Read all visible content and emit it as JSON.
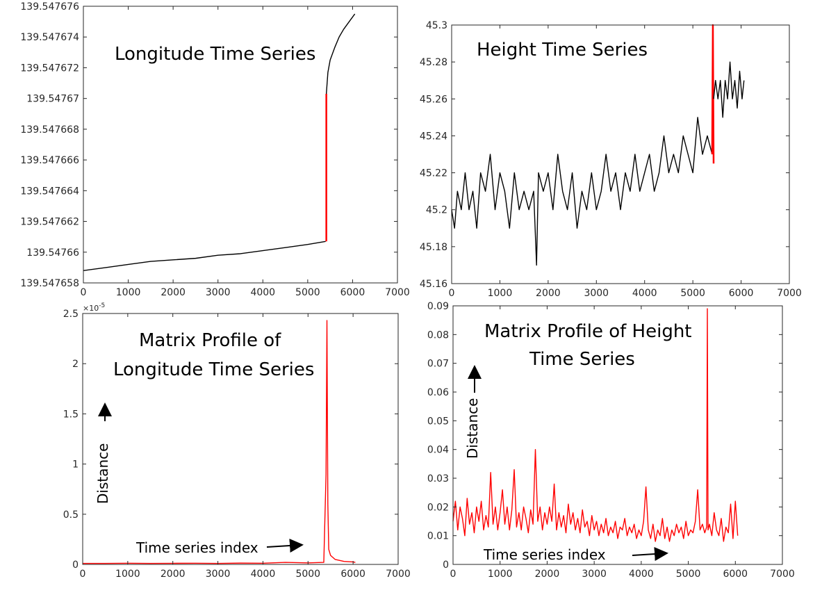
{
  "colors": {
    "series_black": "#000000",
    "series_red": "#ff0000",
    "axis": "#262626",
    "arrow": "#000000"
  },
  "chart_data": [
    {
      "id": "longitude",
      "type": "line",
      "title": "Longitude Time Series",
      "xlabel": "",
      "ylabel": "",
      "xlim": [
        0,
        7000
      ],
      "ylim": [
        139.547658,
        139.547676
      ],
      "xticks": [
        0,
        1000,
        2000,
        3000,
        4000,
        5000,
        6000,
        7000
      ],
      "xtick_labels": [
        "0",
        "1000",
        "2000",
        "3000",
        "4000",
        "5000",
        "6000",
        "7000"
      ],
      "yticks": [
        139.547658,
        139.54766,
        139.547662,
        139.547664,
        139.547666,
        139.547668,
        139.54767,
        139.547672,
        139.547674,
        139.547676
      ],
      "ytick_labels": [
        "139.547658",
        "139.54766",
        "139.547662",
        "139.547664",
        "139.547666",
        "139.547668",
        "139.54767",
        "139.547672",
        "139.547674",
        "139.547676"
      ],
      "grid": false,
      "series": [
        {
          "color": "#000000",
          "x": [
            0,
            500,
            1000,
            1500,
            2000,
            2500,
            3000,
            3500,
            4000,
            4500,
            5000,
            5400
          ],
          "y": [
            139.5476588,
            139.547659,
            139.5476592,
            139.5476594,
            139.5476595,
            139.5476596,
            139.5476598,
            139.5476599,
            139.5476601,
            139.5476603,
            139.5476605,
            139.5476607
          ]
        },
        {
          "color": "#ff0000",
          "x": [
            5415,
            5415
          ],
          "y": [
            139.5476607,
            139.5476703
          ]
        },
        {
          "color": "#000000",
          "x": [
            5415,
            5450,
            5500,
            5600,
            5700,
            5800,
            5900,
            6050
          ],
          "y": [
            139.5476703,
            139.5476717,
            139.5476725,
            139.5476733,
            139.547674,
            139.5476745,
            139.5476749,
            139.5476755
          ]
        }
      ]
    },
    {
      "id": "height",
      "type": "line",
      "title": "Height Time Series",
      "xlabel": "",
      "ylabel": "",
      "xlim": [
        0,
        7000
      ],
      "ylim": [
        45.16,
        45.3
      ],
      "xticks": [
        0,
        1000,
        2000,
        3000,
        4000,
        5000,
        6000,
        7000
      ],
      "xtick_labels": [
        "0",
        "1000",
        "2000",
        "3000",
        "4000",
        "5000",
        "6000",
        "7000"
      ],
      "yticks": [
        45.16,
        45.18,
        45.2,
        45.22,
        45.24,
        45.26,
        45.28,
        45.3
      ],
      "ytick_labels": [
        "45.16",
        "45.18",
        "45.2",
        "45.22",
        "45.24",
        "45.26",
        "45.28",
        "45.3"
      ],
      "grid": false,
      "series": [
        {
          "color": "#000000",
          "x": [
            0,
            60,
            120,
            200,
            280,
            360,
            440,
            520,
            600,
            700,
            800,
            900,
            1000,
            1100,
            1200,
            1300,
            1400,
            1500,
            1600,
            1700,
            1760,
            1800,
            1900,
            2000,
            2100,
            2200,
            2300,
            2400,
            2500,
            2600,
            2700,
            2800,
            2900,
            3000,
            3100,
            3200,
            3300,
            3400,
            3500,
            3600,
            3700,
            3800,
            3900,
            4000,
            4100,
            4200,
            4300,
            4400,
            4500,
            4600,
            4700,
            4800,
            4900,
            5000,
            5100,
            5200,
            5300,
            5400
          ],
          "y": [
            45.2,
            45.19,
            45.21,
            45.2,
            45.22,
            45.2,
            45.21,
            45.19,
            45.22,
            45.21,
            45.23,
            45.2,
            45.22,
            45.21,
            45.19,
            45.22,
            45.2,
            45.21,
            45.2,
            45.21,
            45.17,
            45.22,
            45.21,
            45.22,
            45.2,
            45.23,
            45.21,
            45.2,
            45.22,
            45.19,
            45.21,
            45.2,
            45.22,
            45.2,
            45.21,
            45.23,
            45.21,
            45.22,
            45.2,
            45.22,
            45.21,
            45.23,
            45.21,
            45.22,
            45.23,
            45.21,
            45.22,
            45.24,
            45.22,
            45.23,
            45.22,
            45.24,
            45.23,
            45.22,
            45.25,
            45.23,
            45.24,
            45.23
          ]
        },
        {
          "color": "#ff0000",
          "x": [
            5400,
            5415,
            5430
          ],
          "y": [
            45.23,
            45.3,
            45.225
          ]
        },
        {
          "color": "#000000",
          "x": [
            5430,
            5470,
            5520,
            5570,
            5620,
            5670,
            5720,
            5770,
            5820,
            5870,
            5920,
            5970,
            6020,
            6060
          ],
          "y": [
            45.26,
            45.27,
            45.26,
            45.27,
            45.25,
            45.27,
            45.26,
            45.28,
            45.26,
            45.27,
            45.255,
            45.275,
            45.26,
            45.27
          ]
        }
      ]
    },
    {
      "id": "mp-longitude",
      "type": "line",
      "title_lines": [
        "Matrix Profile of",
        "Longitude Time Series"
      ],
      "xlabel": "",
      "ylabel": "",
      "xlim": [
        0,
        7000
      ],
      "ylim": [
        0,
        2.5
      ],
      "y_exponent": "×10",
      "y_exponent_power": "-5",
      "xticks": [
        0,
        1000,
        2000,
        3000,
        4000,
        5000,
        6000,
        7000
      ],
      "xtick_labels": [
        "0",
        "1000",
        "2000",
        "3000",
        "4000",
        "5000",
        "6000",
        "7000"
      ],
      "yticks": [
        0,
        0.5,
        1,
        1.5,
        2,
        2.5
      ],
      "ytick_labels": [
        "0",
        "0.5",
        "1",
        "1.5",
        "2",
        "2.5"
      ],
      "grid": false,
      "annotations": {
        "distance": "Distance",
        "index": "Time series index"
      },
      "series": [
        {
          "color": "#ff0000",
          "x": [
            0,
            500,
            1000,
            1500,
            2000,
            2500,
            3000,
            3500,
            4000,
            4500,
            5000,
            5350,
            5400,
            5420,
            5440,
            5460,
            5500,
            5600,
            5800,
            6000,
            6050
          ],
          "y": [
            0.01,
            0.01,
            0.012,
            0.01,
            0.011,
            0.012,
            0.01,
            0.013,
            0.012,
            0.02,
            0.015,
            0.02,
            0.9,
            2.43,
            0.6,
            0.15,
            0.09,
            0.05,
            0.03,
            0.025,
            0.02
          ]
        }
      ]
    },
    {
      "id": "mp-height",
      "type": "line",
      "title_lines": [
        "Matrix Profile of Height",
        "Time Series"
      ],
      "xlabel": "",
      "ylabel": "",
      "xlim": [
        0,
        7000
      ],
      "ylim": [
        0,
        0.09
      ],
      "xticks": [
        0,
        1000,
        2000,
        3000,
        4000,
        5000,
        6000,
        7000
      ],
      "xtick_labels": [
        "0",
        "1000",
        "2000",
        "3000",
        "4000",
        "5000",
        "6000",
        "7000"
      ],
      "yticks": [
        0,
        0.01,
        0.02,
        0.03,
        0.04,
        0.05,
        0.06,
        0.07,
        0.08,
        0.09
      ],
      "ytick_labels": [
        "0",
        "0.01",
        "0.02",
        "0.03",
        "0.04",
        "0.05",
        "0.06",
        "0.07",
        "0.08",
        "0.09"
      ],
      "grid": false,
      "annotations": {
        "distance": "Distance",
        "index": "Time series index"
      },
      "series": [
        {
          "color": "#ff0000",
          "x": [
            0,
            50,
            100,
            150,
            200,
            250,
            300,
            350,
            400,
            450,
            500,
            550,
            600,
            650,
            700,
            750,
            800,
            850,
            900,
            950,
            1000,
            1050,
            1100,
            1150,
            1200,
            1250,
            1300,
            1350,
            1400,
            1450,
            1500,
            1550,
            1600,
            1650,
            1700,
            1750,
            1800,
            1850,
            1900,
            1950,
            2000,
            2050,
            2100,
            2150,
            2200,
            2250,
            2300,
            2350,
            2400,
            2450,
            2500,
            2550,
            2600,
            2650,
            2700,
            2750,
            2800,
            2850,
            2900,
            2950,
            3000,
            3050,
            3100,
            3150,
            3200,
            3250,
            3300,
            3350,
            3400,
            3450,
            3500,
            3550,
            3600,
            3650,
            3700,
            3750,
            3800,
            3850,
            3900,
            3950,
            4000,
            4050,
            4100,
            4150,
            4200,
            4250,
            4300,
            4350,
            4400,
            4450,
            4500,
            4550,
            4600,
            4650,
            4700,
            4750,
            4800,
            4850,
            4900,
            4950,
            5000,
            5050,
            5100,
            5150,
            5200,
            5250,
            5300,
            5350,
            5390,
            5405,
            5420,
            5450,
            5500,
            5550,
            5600,
            5650,
            5700,
            5750,
            5800,
            5850,
            5900,
            5950,
            6000,
            6050
          ],
          "y": [
            0.015,
            0.022,
            0.012,
            0.02,
            0.016,
            0.01,
            0.023,
            0.014,
            0.018,
            0.011,
            0.02,
            0.015,
            0.022,
            0.012,
            0.017,
            0.013,
            0.032,
            0.014,
            0.02,
            0.012,
            0.018,
            0.026,
            0.014,
            0.02,
            0.012,
            0.019,
            0.033,
            0.013,
            0.018,
            0.012,
            0.02,
            0.016,
            0.011,
            0.019,
            0.014,
            0.04,
            0.015,
            0.02,
            0.012,
            0.018,
            0.014,
            0.02,
            0.015,
            0.028,
            0.012,
            0.018,
            0.013,
            0.017,
            0.011,
            0.021,
            0.014,
            0.018,
            0.012,
            0.016,
            0.011,
            0.019,
            0.013,
            0.015,
            0.01,
            0.017,
            0.012,
            0.015,
            0.01,
            0.014,
            0.011,
            0.016,
            0.01,
            0.013,
            0.011,
            0.015,
            0.009,
            0.013,
            0.012,
            0.016,
            0.01,
            0.013,
            0.011,
            0.014,
            0.009,
            0.012,
            0.01,
            0.015,
            0.027,
            0.012,
            0.009,
            0.014,
            0.008,
            0.012,
            0.01,
            0.016,
            0.009,
            0.013,
            0.008,
            0.012,
            0.01,
            0.014,
            0.011,
            0.013,
            0.009,
            0.015,
            0.01,
            0.012,
            0.011,
            0.015,
            0.026,
            0.012,
            0.014,
            0.011,
            0.013,
            0.089,
            0.012,
            0.014,
            0.01,
            0.018,
            0.012,
            0.01,
            0.016,
            0.008,
            0.013,
            0.011,
            0.021,
            0.009,
            0.022,
            0.01
          ]
        }
      ]
    }
  ]
}
